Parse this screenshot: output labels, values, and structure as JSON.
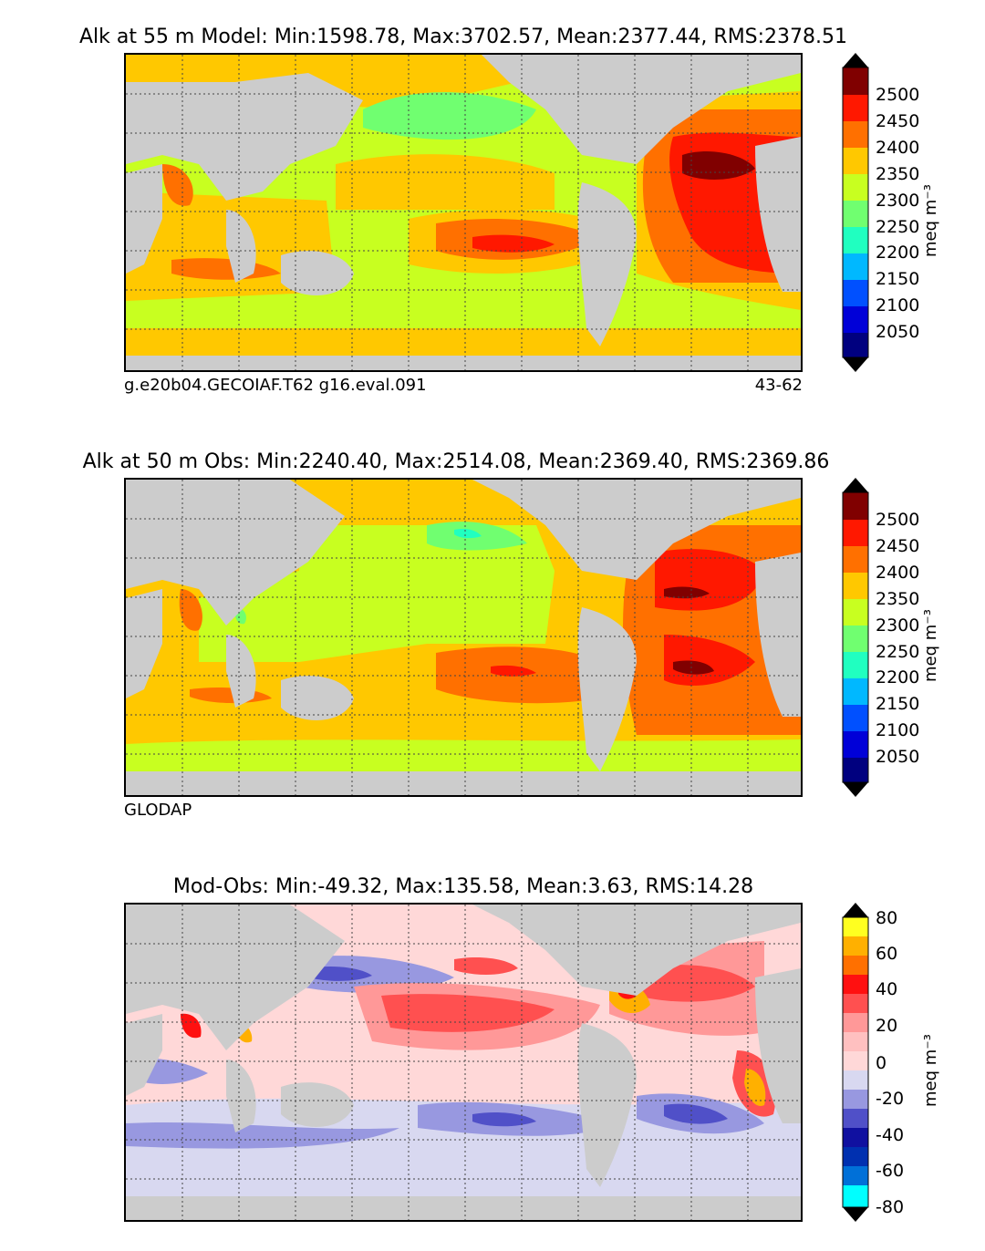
{
  "panels": [
    {
      "title": "Alk at 55 m Model: Min:1598.78, Max:3702.57, Mean:2377.44, RMS:2378.51",
      "source_left": "g.e20b04.GECOIAF.T62 g16.eval.091",
      "source_right": "43-62",
      "colorbar_ticks": [
        "2500",
        "2450",
        "2400",
        "2350",
        "2300",
        "2250",
        "2200",
        "2150",
        "2100",
        "2050"
      ],
      "unit": "meq m⁻³"
    },
    {
      "title": "Alk at 50 m Obs: Min:2240.40, Max:2514.08, Mean:2369.40, RMS:2369.86",
      "source_left": "GLODAP",
      "source_right": "",
      "colorbar_ticks": [
        "2500",
        "2450",
        "2400",
        "2350",
        "2300",
        "2250",
        "2200",
        "2150",
        "2100",
        "2050"
      ],
      "unit": "meq m⁻³"
    },
    {
      "title": "Mod-Obs: Min:-49.32, Max:135.58, Mean:3.63, RMS:14.28",
      "source_left": "",
      "source_right": "",
      "colorbar_ticks": [
        "80",
        "60",
        "40",
        "20",
        "0",
        "-20",
        "-40",
        "-60",
        "-80"
      ],
      "unit": "meq m⁻³"
    }
  ],
  "colors": {
    "land": "#cccccc",
    "alk_scale": [
      "#00007f",
      "#0000d8",
      "#0040ff",
      "#0090ff",
      "#00d8f0",
      "#20ffc0",
      "#70ff70",
      "#c8ff20",
      "#ffc800",
      "#ff7000",
      "#ff1800",
      "#800000"
    ],
    "diff_scale": [
      "#00ffff",
      "#00c8f0",
      "#0070d8",
      "#0030b0",
      "#1010a0",
      "#5050c8",
      "#9898e0",
      "#d8d8f0",
      "#ffd8d8",
      "#ff9898",
      "#ff5050",
      "#ff1010",
      "#ff7000",
      "#ffb000",
      "#ffff20"
    ]
  }
}
